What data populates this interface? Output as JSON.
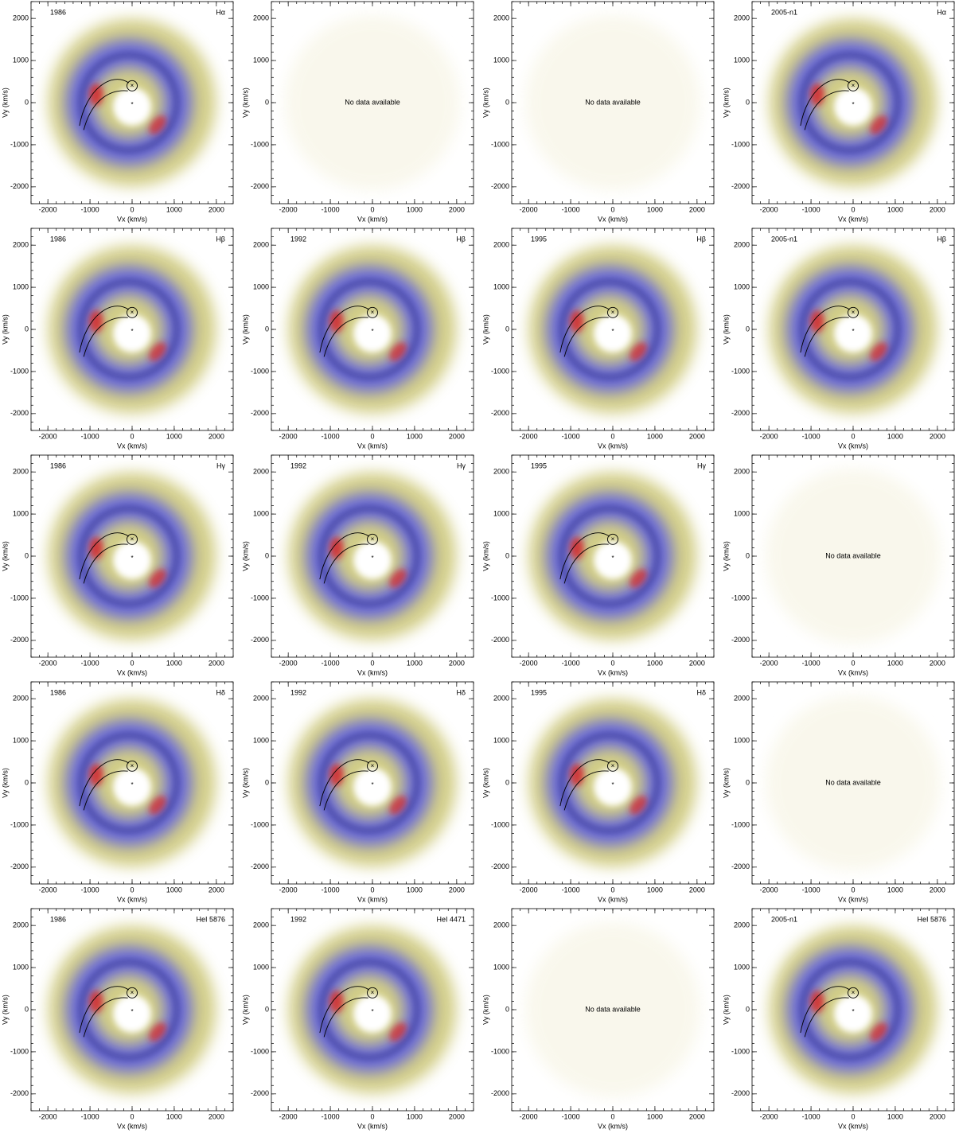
{
  "chart_data": [
    {
      "type": "tomogram",
      "year": "1986",
      "line": "Hα",
      "note": null,
      "xlabel": "Vx (km/s)",
      "ylabel": "Vy (km/s)",
      "xlim": [
        -2400,
        2400
      ],
      "ylim": [
        -2400,
        2400
      ],
      "xticks": [
        -2000,
        -1000,
        0,
        1000,
        2000
      ],
      "yticks": [
        -2000,
        -1000,
        0,
        1000,
        2000
      ]
    },
    {
      "type": "empty",
      "year": null,
      "line": null,
      "note": "No data available",
      "xlabel": "Vx (km/s)",
      "ylabel": "Vy (km/s)",
      "xlim": [
        -2400,
        2400
      ],
      "ylim": [
        -2400,
        2400
      ],
      "xticks": [
        -2000,
        -1000,
        0,
        1000,
        2000
      ],
      "yticks": [
        -2000,
        -1000,
        0,
        1000,
        2000
      ]
    },
    {
      "type": "empty",
      "year": null,
      "line": null,
      "note": "No data available",
      "xlabel": "Vx (km/s)",
      "ylabel": "Vy (km/s)",
      "xlim": [
        -2400,
        2400
      ],
      "ylim": [
        -2400,
        2400
      ],
      "xticks": [
        -2000,
        -1000,
        0,
        1000,
        2000
      ],
      "yticks": [
        -2000,
        -1000,
        0,
        1000,
        2000
      ]
    },
    {
      "type": "tomogram",
      "year": "2005-n1",
      "line": "Hα",
      "note": null,
      "xlabel": "Vx (km/s)",
      "ylabel": "Vy (km/s)",
      "xlim": [
        -2400,
        2400
      ],
      "ylim": [
        -2400,
        2400
      ],
      "xticks": [
        -2000,
        -1000,
        0,
        1000,
        2000
      ],
      "yticks": [
        -2000,
        -1000,
        0,
        1000,
        2000
      ]
    },
    {
      "type": "tomogram",
      "year": "1986",
      "line": "Hβ",
      "note": null,
      "xlabel": "Vx (km/s)",
      "ylabel": "Vy (km/s)",
      "xlim": [
        -2400,
        2400
      ],
      "ylim": [
        -2400,
        2400
      ],
      "xticks": [
        -2000,
        -1000,
        0,
        1000,
        2000
      ],
      "yticks": [
        -2000,
        -1000,
        0,
        1000,
        2000
      ]
    },
    {
      "type": "tomogram",
      "year": "1992",
      "line": "Hβ",
      "note": null,
      "xlabel": "Vx (km/s)",
      "ylabel": "Vy (km/s)",
      "xlim": [
        -2400,
        2400
      ],
      "ylim": [
        -2400,
        2400
      ],
      "xticks": [
        -2000,
        -1000,
        0,
        1000,
        2000
      ],
      "yticks": [
        -2000,
        -1000,
        0,
        1000,
        2000
      ]
    },
    {
      "type": "tomogram",
      "year": "1995",
      "line": "Hβ",
      "note": null,
      "xlabel": "Vx (km/s)",
      "ylabel": "Vy (km/s)",
      "xlim": [
        -2400,
        2400
      ],
      "ylim": [
        -2400,
        2400
      ],
      "xticks": [
        -2000,
        -1000,
        0,
        1000,
        2000
      ],
      "yticks": [
        -2000,
        -1000,
        0,
        1000,
        2000
      ]
    },
    {
      "type": "tomogram",
      "year": "2005-n1",
      "line": "Hβ",
      "note": null,
      "xlabel": "Vx (km/s)",
      "ylabel": "Vy (km/s)",
      "xlim": [
        -2400,
        2400
      ],
      "ylim": [
        -2400,
        2400
      ],
      "xticks": [
        -2000,
        -1000,
        0,
        1000,
        2000
      ],
      "yticks": [
        -2000,
        -1000,
        0,
        1000,
        2000
      ]
    },
    {
      "type": "tomogram",
      "year": "1986",
      "line": "Hγ",
      "note": null,
      "xlabel": "Vx (km/s)",
      "ylabel": "Vy (km/s)",
      "xlim": [
        -2400,
        2400
      ],
      "ylim": [
        -2400,
        2400
      ],
      "xticks": [
        -2000,
        -1000,
        0,
        1000,
        2000
      ],
      "yticks": [
        -2000,
        -1000,
        0,
        1000,
        2000
      ]
    },
    {
      "type": "tomogram",
      "year": "1992",
      "line": "Hγ",
      "note": null,
      "xlabel": "Vx (km/s)",
      "ylabel": "Vy (km/s)",
      "xlim": [
        -2400,
        2400
      ],
      "ylim": [
        -2400,
        2400
      ],
      "xticks": [
        -2000,
        -1000,
        0,
        1000,
        2000
      ],
      "yticks": [
        -2000,
        -1000,
        0,
        1000,
        2000
      ]
    },
    {
      "type": "tomogram",
      "year": "1995",
      "line": "Hγ",
      "note": null,
      "xlabel": "Vx (km/s)",
      "ylabel": "Vy (km/s)",
      "xlim": [
        -2400,
        2400
      ],
      "ylim": [
        -2400,
        2400
      ],
      "xticks": [
        -2000,
        -1000,
        0,
        1000,
        2000
      ],
      "yticks": [
        -2000,
        -1000,
        0,
        1000,
        2000
      ]
    },
    {
      "type": "empty",
      "year": null,
      "line": null,
      "note": "No data available",
      "xlabel": "Vx (km/s)",
      "ylabel": "Vy (km/s)",
      "xlim": [
        -2400,
        2400
      ],
      "ylim": [
        -2400,
        2400
      ],
      "xticks": [
        -2000,
        -1000,
        0,
        1000,
        2000
      ],
      "yticks": [
        -2000,
        -1000,
        0,
        1000,
        2000
      ]
    },
    {
      "type": "tomogram",
      "year": "1986",
      "line": "Hδ",
      "note": null,
      "xlabel": "Vx (km/s)",
      "ylabel": "Vy (km/s)",
      "xlim": [
        -2400,
        2400
      ],
      "ylim": [
        -2400,
        2400
      ],
      "xticks": [
        -2000,
        -1000,
        0,
        1000,
        2000
      ],
      "yticks": [
        -2000,
        -1000,
        0,
        1000,
        2000
      ]
    },
    {
      "type": "tomogram",
      "year": "1992",
      "line": "Hδ",
      "note": null,
      "xlabel": "Vx (km/s)",
      "ylabel": "Vy (km/s)",
      "xlim": [
        -2400,
        2400
      ],
      "ylim": [
        -2400,
        2400
      ],
      "xticks": [
        -2000,
        -1000,
        0,
        1000,
        2000
      ],
      "yticks": [
        -2000,
        -1000,
        0,
        1000,
        2000
      ]
    },
    {
      "type": "tomogram",
      "year": "1995",
      "line": "Hδ",
      "note": null,
      "xlabel": "Vx (km/s)",
      "ylabel": "Vy (km/s)",
      "xlim": [
        -2400,
        2400
      ],
      "ylim": [
        -2400,
        2400
      ],
      "xticks": [
        -2000,
        -1000,
        0,
        1000,
        2000
      ],
      "yticks": [
        -2000,
        -1000,
        0,
        1000,
        2000
      ]
    },
    {
      "type": "empty",
      "year": null,
      "line": null,
      "note": "No data available",
      "xlabel": "Vx (km/s)",
      "ylabel": "Vy (km/s)",
      "xlim": [
        -2400,
        2400
      ],
      "ylim": [
        -2400,
        2400
      ],
      "xticks": [
        -2000,
        -1000,
        0,
        1000,
        2000
      ],
      "yticks": [
        -2000,
        -1000,
        0,
        1000,
        2000
      ]
    },
    {
      "type": "tomogram",
      "year": "1986",
      "line": "HeI 5876",
      "note": null,
      "xlabel": "Vx (km/s)",
      "ylabel": "Vy (km/s)",
      "xlim": [
        -2400,
        2400
      ],
      "ylim": [
        -2400,
        2400
      ],
      "xticks": [
        -2000,
        -1000,
        0,
        1000,
        2000
      ],
      "yticks": [
        -2000,
        -1000,
        0,
        1000,
        2000
      ]
    },
    {
      "type": "tomogram",
      "year": "1992",
      "line": "HeI 4471",
      "note": null,
      "xlabel": "Vx (km/s)",
      "ylabel": "Vy (km/s)",
      "xlim": [
        -2400,
        2400
      ],
      "ylim": [
        -2400,
        2400
      ],
      "xticks": [
        -2000,
        -1000,
        0,
        1000,
        2000
      ],
      "yticks": [
        -2000,
        -1000,
        0,
        1000,
        2000
      ]
    },
    {
      "type": "empty",
      "year": null,
      "line": null,
      "note": "No data available",
      "xlabel": "Vx (km/s)",
      "ylabel": "Vy (km/s)",
      "xlim": [
        -2400,
        2400
      ],
      "ylim": [
        -2400,
        2400
      ],
      "xticks": [
        -2000,
        -1000,
        0,
        1000,
        2000
      ],
      "yticks": [
        -2000,
        -1000,
        0,
        1000,
        2000
      ]
    },
    {
      "type": "tomogram",
      "year": "2005-n1",
      "line": "HeI 5876",
      "note": null,
      "xlabel": "Vx (km/s)",
      "ylabel": "Vy (km/s)",
      "xlim": [
        -2400,
        2400
      ],
      "ylim": [
        -2400,
        2400
      ],
      "xticks": [
        -2000,
        -1000,
        0,
        1000,
        2000
      ],
      "yticks": [
        -2000,
        -1000,
        0,
        1000,
        2000
      ]
    }
  ]
}
